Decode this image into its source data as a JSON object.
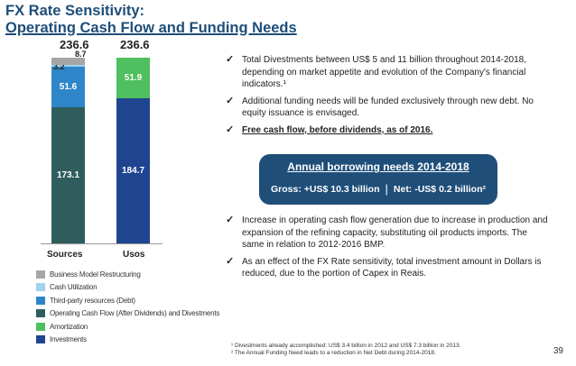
{
  "slide": {
    "title_line1": "FX Rate Sensitivity:",
    "title_line2": "Operating Cash Flow and Funding Needs",
    "page_number": "39"
  },
  "chart_data": {
    "type": "bar",
    "stacked": true,
    "categories": [
      "Sources",
      "Usos"
    ],
    "totals": [
      "236.6",
      "236.6"
    ],
    "series": [
      {
        "name": "Business Model Restructuring",
        "color": "#a6a6a6",
        "values": [
          8.7,
          0
        ],
        "labels": [
          "8.7",
          ""
        ]
      },
      {
        "name": "Cash Utilization",
        "color": "#9fd3ee",
        "values": [
          3.2,
          0
        ],
        "labels": [
          "3.2",
          ""
        ]
      },
      {
        "name": "Third-party resources (Debt)",
        "color": "#2e86c9",
        "values": [
          51.6,
          0
        ],
        "labels": [
          "51.6",
          ""
        ]
      },
      {
        "name": "Operating Cash Flow (After Dividends) and Divestments",
        "color": "#2f5d5d",
        "values": [
          173.1,
          0
        ],
        "labels": [
          "173.1",
          ""
        ]
      },
      {
        "name": "Amortization",
        "color": "#4fbf5f",
        "values": [
          0,
          51.9
        ],
        "labels": [
          "",
          "51.9"
        ]
      },
      {
        "name": "Investments",
        "color": "#1f4590",
        "values": [
          0,
          184.7
        ],
        "labels": [
          "",
          "184.7"
        ]
      }
    ],
    "ylim": [
      0,
      236.6
    ],
    "legend_position": "bottom-left"
  },
  "bullets_top": [
    "Total Divestments between US$ 5 and 11 billion throughout 2014-2018, depending on market appetite and evolution of the Company's financial indicators.¹",
    "Additional funding needs will be funded exclusively through new debt. No equity issuance is envisaged.",
    "Free cash flow, before dividends, as of 2016."
  ],
  "bullets_bottom": [
    "Increase in operating cash flow generation due to increase in production and expansion of the refining capacity, substituting oil products imports. The same in relation to 2012-2016 BMP.",
    "As an effect of the FX Rate sensitivity, total investment amount in Dollars is reduced, due to the portion of Capex in Reais."
  ],
  "check_symbol": "✓",
  "borrowing": {
    "title": "Annual borrowing needs 2014-2018",
    "gross": "Gross: +US$ 10.3 billion",
    "separator": "|",
    "net": "Net: -US$ 0.2 billion²"
  },
  "footnotes": [
    "¹ Divestments already accomplished: US$ 3.4 billion in 2012 and US$ 7.3 billion in 2013.",
    "² The Annual Funding Need leads to a reduction in Net Debt during 2014-2018."
  ],
  "colors": {
    "title": "#1f4e79",
    "box": "#1f4e79"
  }
}
